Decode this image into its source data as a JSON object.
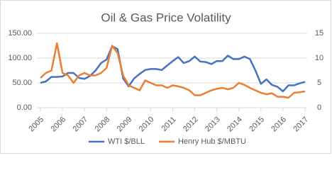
{
  "chart_data": {
    "type": "line",
    "title": "Oil & Gas Price Volatility",
    "x": [
      2005,
      2005.25,
      2005.5,
      2005.75,
      2006,
      2006.25,
      2006.5,
      2006.75,
      2007,
      2007.25,
      2007.5,
      2007.75,
      2008,
      2008.25,
      2008.5,
      2008.75,
      2009,
      2009.25,
      2009.5,
      2009.75,
      2010,
      2010.25,
      2010.5,
      2010.75,
      2011,
      2011.25,
      2011.5,
      2011.75,
      2012,
      2012.25,
      2012.5,
      2012.75,
      2013,
      2013.25,
      2013.5,
      2013.75,
      2014,
      2014.25,
      2014.5,
      2014.75,
      2015,
      2015.25,
      2015.5,
      2015.75,
      2016,
      2016.25,
      2016.5,
      2016.75,
      2017
    ],
    "series": [
      {
        "name": "WTI $/BLL",
        "color": "#4472c4",
        "values": [
          50,
          53,
          62,
          62,
          63,
          70,
          70,
          60,
          58,
          64,
          75,
          90,
          97,
          124,
          118,
          59,
          43,
          59,
          68,
          76,
          78,
          78,
          76,
          85,
          94,
          102,
          90,
          94,
          103,
          93,
          92,
          88,
          94,
          94,
          105,
          98,
          98,
          103,
          98,
          75,
          48,
          57,
          46,
          42,
          33,
          45,
          45,
          49,
          52
        ]
      },
      {
        "name": "Henry Hub $/MBTU",
        "color": "#ed7d31",
        "axis": "y2",
        "values": [
          6,
          7,
          7.5,
          13,
          7,
          6.5,
          5,
          6.5,
          7,
          6.5,
          6.5,
          7,
          8,
          12.5,
          11,
          6.5,
          4.5,
          4,
          3.5,
          5.5,
          5,
          4.5,
          4.5,
          4,
          4.5,
          4.3,
          4,
          3.5,
          2.5,
          2.5,
          3,
          3.5,
          3.8,
          4,
          3.7,
          4,
          5,
          4.6,
          4,
          3.5,
          3,
          2.7,
          2.9,
          2.2,
          2.2,
          2,
          3,
          3.1,
          3.3
        ]
      }
    ],
    "xlim": [
      2005,
      2017
    ],
    "xticks": [
      2005,
      2006,
      2007,
      2008,
      2009,
      2010,
      2011,
      2012,
      2013,
      2014,
      2015,
      2016,
      2017
    ],
    "ylim": [
      0,
      150
    ],
    "yticks": [
      {
        "value": 0,
        "label": "0.00"
      },
      {
        "value": 50,
        "label": "50.00"
      },
      {
        "value": 100,
        "label": "100.00"
      },
      {
        "value": 150,
        "label": "150.00"
      }
    ],
    "y2lim": [
      0,
      15
    ],
    "y2ticks": [
      0,
      5,
      10,
      15
    ],
    "grid": true,
    "legend": "bottom"
  }
}
